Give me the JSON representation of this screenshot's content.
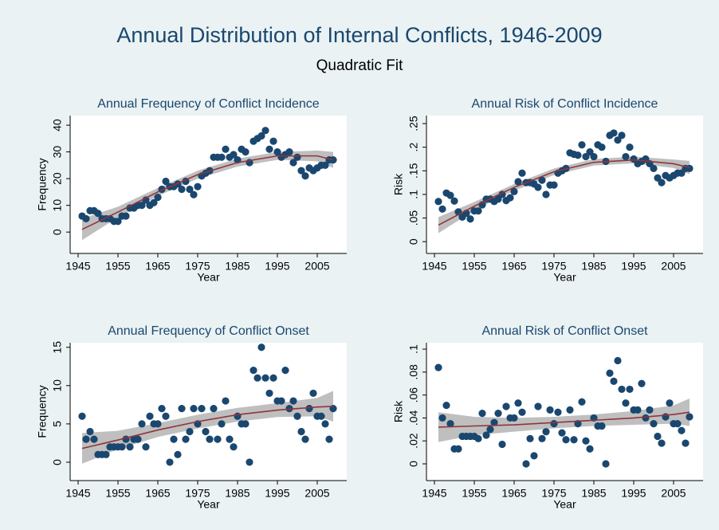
{
  "title": "Annual Distribution of Internal Conflicts, 1946-2009",
  "subtitle": "Quadratic Fit",
  "chart_data": [
    {
      "type": "scatter",
      "title": "Annual Frequency of Conflict Incidence",
      "xlabel": "Year",
      "ylabel": "Frequency",
      "color": "#1a476f",
      "x": [
        1946,
        1947,
        1948,
        1949,
        1950,
        1951,
        1952,
        1953,
        1954,
        1955,
        1956,
        1957,
        1958,
        1959,
        1960,
        1961,
        1962,
        1963,
        1964,
        1965,
        1966,
        1967,
        1968,
        1969,
        1970,
        1971,
        1972,
        1973,
        1974,
        1975,
        1976,
        1977,
        1978,
        1979,
        1980,
        1981,
        1982,
        1983,
        1984,
        1985,
        1986,
        1987,
        1988,
        1989,
        1990,
        1991,
        1992,
        1993,
        1994,
        1995,
        1996,
        1997,
        1998,
        1999,
        2000,
        2001,
        2002,
        2003,
        2004,
        2005,
        2006,
        2007,
        2008,
        2009
      ],
      "values": [
        6,
        5,
        8,
        8,
        7,
        5,
        5,
        5,
        4,
        4,
        6,
        6,
        9,
        9,
        10,
        10,
        12,
        10,
        11,
        13,
        16,
        19,
        17,
        17,
        18,
        16,
        19,
        16,
        14,
        17,
        21,
        22,
        23,
        28,
        28,
        28,
        31,
        28,
        29,
        27,
        31,
        30,
        26,
        34,
        35,
        36,
        38,
        31,
        34,
        30,
        28,
        29,
        30,
        26,
        28,
        23,
        21,
        24,
        23,
        24,
        25,
        25,
        27,
        27
      ],
      "fit": {
        "color": "#90353b",
        "band_color": "#b4b4b4",
        "x": [
          1946,
          1955,
          1965,
          1975,
          1985,
          1995,
          2005,
          2009
        ],
        "values": [
          1,
          7.5,
          15,
          21.5,
          26,
          28.5,
          28.5,
          27
        ],
        "lower": [
          -3,
          5.5,
          13.5,
          20,
          24.5,
          27,
          26.5,
          24
        ],
        "upper": [
          5,
          9.5,
          16.5,
          23,
          27.5,
          30,
          30.5,
          30
        ]
      },
      "xlim": [
        1943,
        2012.4
      ],
      "xticks": [
        1945,
        1955,
        1965,
        1975,
        1985,
        1995,
        2005
      ],
      "ylim": [
        -8,
        43.6
      ],
      "yticks": [
        0,
        10,
        20,
        30,
        40
      ]
    },
    {
      "type": "scatter",
      "title": "Annual Risk of Conflict Incidence",
      "xlabel": "Year",
      "ylabel": "Risk",
      "color": "#1a476f",
      "x": [
        1946,
        1947,
        1948,
        1949,
        1950,
        1951,
        1952,
        1953,
        1954,
        1955,
        1956,
        1957,
        1958,
        1959,
        1960,
        1961,
        1962,
        1963,
        1964,
        1965,
        1966,
        1967,
        1968,
        1969,
        1970,
        1971,
        1972,
        1973,
        1974,
        1975,
        1976,
        1977,
        1978,
        1979,
        1980,
        1981,
        1982,
        1983,
        1984,
        1985,
        1986,
        1987,
        1988,
        1989,
        1990,
        1991,
        1992,
        1993,
        1994,
        1995,
        1996,
        1997,
        1998,
        1999,
        2000,
        2001,
        2002,
        2003,
        2004,
        2005,
        2006,
        2007,
        2008,
        2009
      ],
      "values": [
        0.085,
        0.069,
        0.103,
        0.098,
        0.086,
        0.063,
        0.052,
        0.06,
        0.048,
        0.065,
        0.065,
        0.078,
        0.09,
        0.09,
        0.085,
        0.09,
        0.1,
        0.087,
        0.093,
        0.106,
        0.127,
        0.145,
        0.125,
        0.125,
        0.122,
        0.115,
        0.13,
        0.1,
        0.12,
        0.12,
        0.145,
        0.15,
        0.155,
        0.188,
        0.185,
        0.183,
        0.205,
        0.18,
        0.19,
        0.18,
        0.205,
        0.2,
        0.17,
        0.225,
        0.23,
        0.215,
        0.225,
        0.18,
        0.2,
        0.175,
        0.165,
        0.17,
        0.175,
        0.165,
        0.155,
        0.135,
        0.125,
        0.14,
        0.135,
        0.14,
        0.145,
        0.145,
        0.155,
        0.155
      ],
      "fit": {
        "color": "#90353b",
        "band_color": "#b4b4b4",
        "x": [
          1946,
          1955,
          1965,
          1975,
          1985,
          1995,
          2005,
          2009
        ],
        "values": [
          0.035,
          0.075,
          0.115,
          0.148,
          0.168,
          0.173,
          0.165,
          0.157
        ],
        "lower": [
          0.018,
          0.066,
          0.108,
          0.141,
          0.161,
          0.166,
          0.156,
          0.143
        ],
        "upper": [
          0.052,
          0.084,
          0.122,
          0.155,
          0.175,
          0.18,
          0.174,
          0.171
        ]
      },
      "xlim": [
        1943,
        2012.4
      ],
      "xticks": [
        1945,
        1955,
        1965,
        1975,
        1985,
        1995,
        2005
      ],
      "ylim": [
        -0.025,
        0.267
      ],
      "yticks": [
        0,
        {
          "value": 0.05,
          "label": ".05"
        },
        {
          "value": 0.1,
          "label": ".1"
        },
        {
          "value": 0.15,
          "label": ".15"
        },
        {
          "value": 0.2,
          "label": ".2"
        },
        {
          "value": 0.25,
          "label": ".25"
        }
      ]
    },
    {
      "type": "scatter",
      "title": "Annual Frequency of Conflict Onset",
      "xlabel": "Year",
      "ylabel": "Frequency",
      "color": "#1a476f",
      "x": [
        1946,
        1947,
        1948,
        1949,
        1950,
        1951,
        1952,
        1953,
        1954,
        1955,
        1956,
        1957,
        1958,
        1959,
        1960,
        1961,
        1962,
        1963,
        1964,
        1965,
        1966,
        1967,
        1968,
        1969,
        1970,
        1971,
        1972,
        1973,
        1974,
        1975,
        1976,
        1977,
        1978,
        1979,
        1980,
        1981,
        1982,
        1983,
        1984,
        1985,
        1986,
        1987,
        1988,
        1989,
        1990,
        1991,
        1992,
        1993,
        1994,
        1995,
        1996,
        1997,
        1998,
        1999,
        2000,
        2001,
        2002,
        2003,
        2004,
        2005,
        2006,
        2007,
        2008,
        2009
      ],
      "values": [
        6,
        3,
        4,
        3,
        1,
        1,
        1,
        2,
        2,
        2,
        2,
        3,
        2,
        3,
        3,
        5,
        2,
        6,
        5,
        5,
        7,
        6,
        0,
        3,
        1,
        7,
        3,
        4,
        7,
        5,
        7,
        4,
        3,
        7,
        3,
        5,
        8,
        3,
        2,
        6,
        5,
        5,
        0,
        12,
        11,
        15,
        11,
        9,
        11,
        8,
        8,
        12,
        7,
        8,
        6,
        4,
        3,
        7,
        9,
        6,
        6,
        5,
        3,
        7
      ],
      "fit": {
        "color": "#90353b",
        "band_color": "#b4b4b4",
        "x": [
          1946,
          1955,
          1965,
          1975,
          1985,
          1995,
          2005,
          2009
        ],
        "values": [
          1.8,
          2.9,
          4.2,
          5.3,
          6.2,
          6.8,
          7.2,
          7.3
        ],
        "lower": [
          -0.2,
          1.7,
          3.3,
          4.4,
          5.3,
          5.9,
          6,
          5.3
        ],
        "upper": [
          3.8,
          4.1,
          5.1,
          6.2,
          7.1,
          7.7,
          8.4,
          9.3
        ]
      },
      "xlim": [
        1943,
        2012.4
      ],
      "xticks": [
        1945,
        1955,
        1965,
        1975,
        1985,
        1995,
        2005
      ],
      "ylim": [
        -2.4,
        15.6
      ],
      "yticks": [
        0,
        5,
        10,
        15
      ]
    },
    {
      "type": "scatter",
      "title": "Annual Risk of Conflict Onset",
      "xlabel": "Year",
      "ylabel": "Risk",
      "color": "#1a476f",
      "x": [
        1946,
        1947,
        1948,
        1949,
        1950,
        1951,
        1952,
        1953,
        1954,
        1955,
        1956,
        1957,
        1958,
        1959,
        1960,
        1961,
        1962,
        1963,
        1964,
        1965,
        1966,
        1967,
        1968,
        1969,
        1970,
        1971,
        1972,
        1973,
        1974,
        1975,
        1976,
        1977,
        1978,
        1979,
        1980,
        1981,
        1982,
        1983,
        1984,
        1985,
        1986,
        1987,
        1988,
        1989,
        1990,
        1991,
        1992,
        1993,
        1994,
        1995,
        1996,
        1997,
        1998,
        1999,
        2000,
        2001,
        2002,
        2003,
        2004,
        2005,
        2006,
        2007,
        2008,
        2009
      ],
      "values": [
        0.084,
        0.04,
        0.051,
        0.035,
        0.013,
        0.013,
        0.024,
        0.024,
        0.024,
        0.024,
        0.022,
        0.044,
        0.025,
        0.03,
        0.036,
        0.044,
        0.017,
        0.05,
        0.04,
        0.04,
        0.053,
        0.045,
        0,
        0.022,
        0.007,
        0.05,
        0.022,
        0.028,
        0.047,
        0.035,
        0.045,
        0.027,
        0.021,
        0.047,
        0.021,
        0.035,
        0.054,
        0.02,
        0.013,
        0.04,
        0.033,
        0.033,
        0,
        0.079,
        0.072,
        0.09,
        0.065,
        0.053,
        0.065,
        0.047,
        0.047,
        0.07,
        0.04,
        0.047,
        0.035,
        0.024,
        0.018,
        0.041,
        0.053,
        0.035,
        0.035,
        0.029,
        0.018,
        0.041
      ],
      "fit": {
        "color": "#90353b",
        "band_color": "#b4b4b4",
        "x": [
          1946,
          1955,
          1965,
          1975,
          1985,
          1995,
          2005,
          2009
        ],
        "values": [
          0.032,
          0.033,
          0.034,
          0.036,
          0.038,
          0.04,
          0.043,
          0.045
        ],
        "lower": [
          0.019,
          0.025,
          0.028,
          0.031,
          0.033,
          0.034,
          0.035,
          0.033
        ],
        "upper": [
          0.045,
          0.041,
          0.04,
          0.041,
          0.043,
          0.046,
          0.051,
          0.057
        ]
      },
      "xlim": [
        1943,
        2012.4
      ],
      "xticks": [
        1945,
        1955,
        1965,
        1975,
        1985,
        1995,
        2005
      ],
      "ylim": [
        -0.0146,
        0.1056
      ],
      "yticks": [
        0,
        {
          "value": 0.02,
          "label": ".02"
        },
        {
          "value": 0.04,
          "label": ".04"
        },
        {
          "value": 0.06,
          "label": ".06"
        },
        {
          "value": 0.08,
          "label": ".08"
        },
        {
          "value": 0.1,
          "label": ".1"
        }
      ]
    }
  ]
}
